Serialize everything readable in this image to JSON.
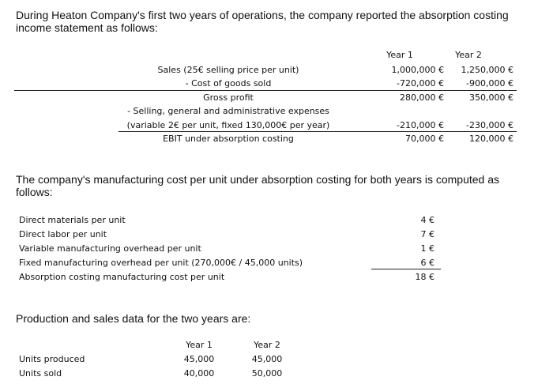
{
  "intro": {
    "line1": "During Heaton Company's first two years of operations, the company reported the absorption costing",
    "line2": "income statement as follows:"
  },
  "income_statement": {
    "headers": [
      "Year 1",
      "Year 2"
    ],
    "rows": [
      {
        "label": "Sales (25€ selling price per unit)",
        "y1": "1,000,000 €",
        "y2": "1,250,000 €"
      },
      {
        "label": "- Cost of goods sold",
        "y1": "-720,000 €",
        "y2": "-900,000 €"
      },
      {
        "label": "Gross profit",
        "y1": "280,000 €",
        "y2": "350,000 €"
      },
      {
        "label": "- Selling, general and administrative expenses",
        "y1": "",
        "y2": ""
      },
      {
        "label": "(variable 2€ per unit, fixed 130,000€ per year)",
        "y1": "-210,000 €",
        "y2": "-230,000 €"
      },
      {
        "label": "EBIT under absorption costing",
        "y1": "70,000 €",
        "y2": "120,000 €"
      }
    ]
  },
  "mfg_intro": {
    "line1": "The company's manufacturing cost per unit under absorption costing for both years is computed as",
    "line2": "follows:"
  },
  "mfg_cost": {
    "rows": [
      {
        "label": "Direct materials per unit",
        "value": "4 €"
      },
      {
        "label": "Direct labor per unit",
        "value": "7 €"
      },
      {
        "label": "Variable manufacturing overhead per unit",
        "value": "1 €"
      },
      {
        "label": "Fixed manufacturing overhead per unit (270,000€ / 45,000 units)",
        "value": "6 €"
      },
      {
        "label": "Absorption costing manufacturing cost per unit",
        "value": "18 €"
      }
    ]
  },
  "production_intro": "Production and sales data for the two years are:",
  "production": {
    "headers": [
      "Year 1",
      "Year 2"
    ],
    "rows": [
      {
        "label": "Units produced",
        "y1": "45,000",
        "y2": "45,000"
      },
      {
        "label": "Units sold",
        "y1": "40,000",
        "y2": "50,000"
      }
    ]
  }
}
